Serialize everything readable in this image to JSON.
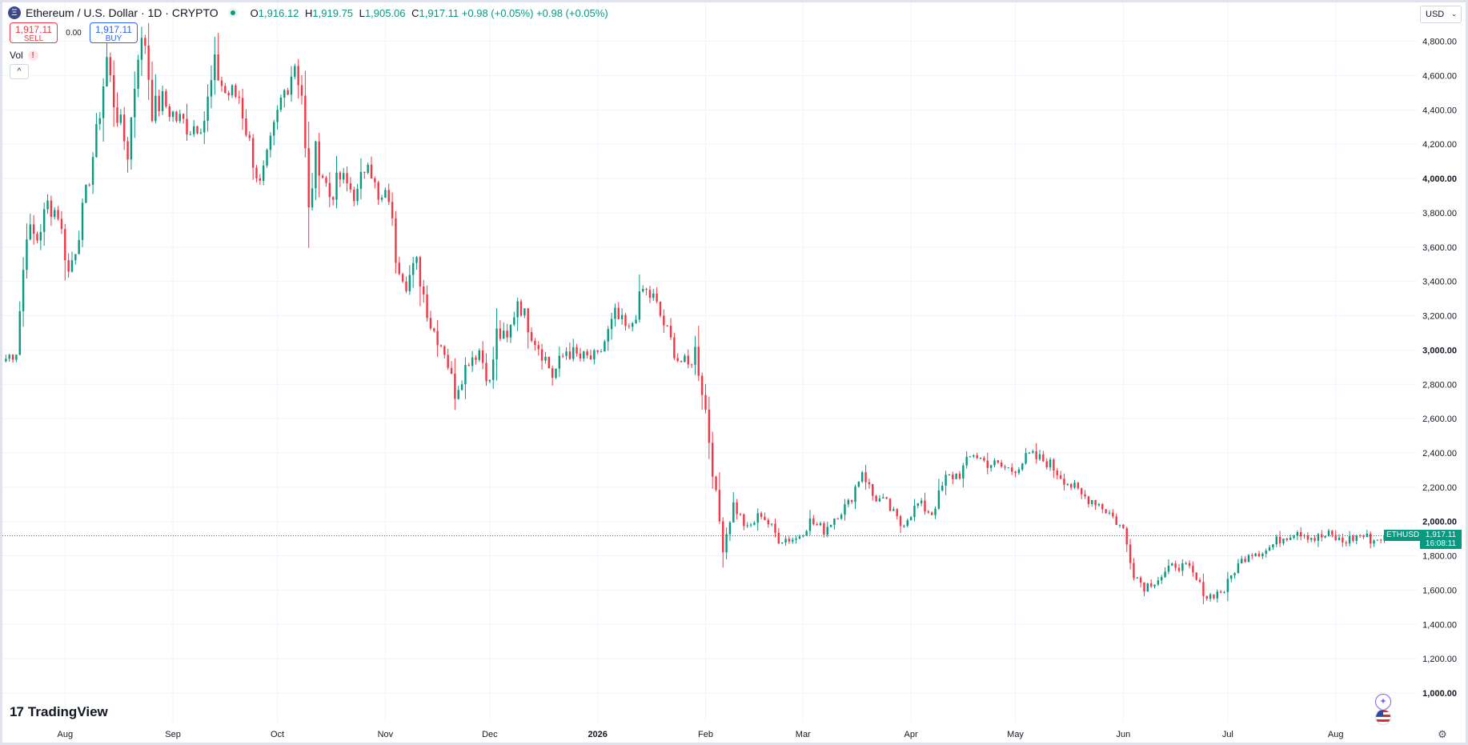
{
  "legend": {
    "symbol": "Ethereum / U.S. Dollar · 1D · CRYPTO",
    "logo_glyph": "Ξ",
    "open_label": "O",
    "open": "1,916.12",
    "high_label": "H",
    "high": "1,919.75",
    "low_label": "L",
    "low": "1,905.06",
    "close_label": "C",
    "close": "1,917.11",
    "change": "+0.98 (+0.05%)",
    "change2": "+0.98 (+0.05%)"
  },
  "trade": {
    "sell_price": "1,917.11",
    "sell_label": "SELL",
    "spread": "0.00",
    "buy_price": "1,917.11",
    "buy_label": "BUY"
  },
  "volume": {
    "label": "Vol",
    "warn_glyph": "!"
  },
  "collapse_glyph": "^",
  "currency": {
    "label": "USD",
    "caret": "⌄"
  },
  "branding": {
    "name": "TradingView",
    "mark": "17"
  },
  "last_price": {
    "symbol_tag": "ETHUSD",
    "price": "1,917.11",
    "countdown": "16:08:11"
  },
  "icons": {
    "ai": "ai-assistant-icon",
    "flag": "us-flag-icon",
    "gear": "gear-icon"
  },
  "colors": {
    "up": "#089981",
    "down": "#f23645",
    "grid": "#f0f3fa",
    "text": "#131722"
  },
  "chart_data": {
    "type": "candlestick",
    "title": "Ethereum / U.S. Dollar · 1D · CRYPTO",
    "y_axis": {
      "ticks": [
        "1,000.00",
        "1,200.00",
        "1,400.00",
        "1,600.00",
        "1,800.00",
        "2,000.00",
        "2,200.00",
        "2,400.00",
        "2,600.00",
        "2,800.00",
        "3,000.00",
        "3,200.00",
        "3,400.00",
        "3,600.00",
        "3,800.00",
        "4,000.00",
        "4,200.00",
        "4,400.00",
        "4,600.00",
        "4,800.00"
      ],
      "tick_values": [
        1000,
        1200,
        1400,
        1600,
        1800,
        2000,
        2200,
        2400,
        2600,
        2800,
        3000,
        3200,
        3400,
        3600,
        3800,
        4000,
        4200,
        4400,
        4600,
        4800
      ],
      "bold_ticks": [
        "1,000.00",
        "2,000.00",
        "3,000.00",
        "4,000.00"
      ],
      "range": [
        985,
        4880
      ],
      "scale": "linear"
    },
    "x_axis": {
      "start_date": "2025-07-14",
      "end_date": "2026-08-22",
      "labels": [
        {
          "text": "Aug",
          "date": "2025-08-01"
        },
        {
          "text": "Sep",
          "date": "2025-09-01"
        },
        {
          "text": "Oct",
          "date": "2025-10-01"
        },
        {
          "text": "Nov",
          "date": "2025-11-01"
        },
        {
          "text": "Dec",
          "date": "2025-12-01"
        },
        {
          "text": "2026",
          "date": "2026-01-01",
          "bold": true
        },
        {
          "text": "Feb",
          "date": "2026-02-01"
        },
        {
          "text": "Mar",
          "date": "2026-03-01"
        },
        {
          "text": "Apr",
          "date": "2026-04-01"
        },
        {
          "text": "May",
          "date": "2026-05-01"
        },
        {
          "text": "Jun",
          "date": "2026-06-01"
        },
        {
          "text": "Jul",
          "date": "2026-07-01"
        },
        {
          "text": "Aug",
          "date": "2026-08-01"
        }
      ]
    },
    "grid": true,
    "last_price_line": 1917.11,
    "anchors": [
      {
        "date": "2025-07-15",
        "close": 2950
      },
      {
        "date": "2025-07-18",
        "close": 3000
      },
      {
        "date": "2025-07-21",
        "close": 3700
      },
      {
        "date": "2025-07-24",
        "close": 3650
      },
      {
        "date": "2025-07-27",
        "close": 3850
      },
      {
        "date": "2025-07-30",
        "close": 3800
      },
      {
        "date": "2025-08-02",
        "close": 3450
      },
      {
        "date": "2025-08-04",
        "close": 3600
      },
      {
        "date": "2025-08-07",
        "close": 3900
      },
      {
        "date": "2025-08-10",
        "close": 4250
      },
      {
        "date": "2025-08-13",
        "close": 4700
      },
      {
        "date": "2025-08-15",
        "close": 4450
      },
      {
        "date": "2025-08-19",
        "close": 4150
      },
      {
        "date": "2025-08-22",
        "close": 4750
      },
      {
        "date": "2025-08-24",
        "close": 4800
      },
      {
        "date": "2025-08-26",
        "close": 4400
      },
      {
        "date": "2025-08-29",
        "close": 4450
      },
      {
        "date": "2025-09-02",
        "close": 4350
      },
      {
        "date": "2025-09-06",
        "close": 4300
      },
      {
        "date": "2025-09-10",
        "close": 4350
      },
      {
        "date": "2025-09-13",
        "close": 4650
      },
      {
        "date": "2025-09-16",
        "close": 4500
      },
      {
        "date": "2025-09-20",
        "close": 4480
      },
      {
        "date": "2025-09-23",
        "close": 4200
      },
      {
        "date": "2025-09-26",
        "close": 3950
      },
      {
        "date": "2025-09-28",
        "close": 4100
      },
      {
        "date": "2025-10-02",
        "close": 4450
      },
      {
        "date": "2025-10-06",
        "close": 4680
      },
      {
        "date": "2025-10-08",
        "close": 4500
      },
      {
        "date": "2025-10-10",
        "close": 3800
      },
      {
        "date": "2025-10-12",
        "close": 4150
      },
      {
        "date": "2025-10-16",
        "close": 3900
      },
      {
        "date": "2025-10-19",
        "close": 4000
      },
      {
        "date": "2025-10-24",
        "close": 3900
      },
      {
        "date": "2025-10-27",
        "close": 4150
      },
      {
        "date": "2025-10-30",
        "close": 3850
      },
      {
        "date": "2025-11-02",
        "close": 3900
      },
      {
        "date": "2025-11-04",
        "close": 3550
      },
      {
        "date": "2025-11-07",
        "close": 3400
      },
      {
        "date": "2025-11-10",
        "close": 3500
      },
      {
        "date": "2025-11-14",
        "close": 3150
      },
      {
        "date": "2025-11-18",
        "close": 3000
      },
      {
        "date": "2025-11-21",
        "close": 2750
      },
      {
        "date": "2025-11-25",
        "close": 2950
      },
      {
        "date": "2025-11-28",
        "close": 3000
      },
      {
        "date": "2025-12-01",
        "close": 2800
      },
      {
        "date": "2025-12-03",
        "close": 3100
      },
      {
        "date": "2025-12-06",
        "close": 3050
      },
      {
        "date": "2025-12-09",
        "close": 3300
      },
      {
        "date": "2025-12-13",
        "close": 3100
      },
      {
        "date": "2025-12-17",
        "close": 2950
      },
      {
        "date": "2025-12-19",
        "close": 2850
      },
      {
        "date": "2025-12-23",
        "close": 3000
      },
      {
        "date": "2025-12-27",
        "close": 2950
      },
      {
        "date": "2026-01-01",
        "close": 2950
      },
      {
        "date": "2026-01-06",
        "close": 3200
      },
      {
        "date": "2026-01-10",
        "close": 3100
      },
      {
        "date": "2026-01-14",
        "close": 3350
      },
      {
        "date": "2026-01-17",
        "close": 3300
      },
      {
        "date": "2026-01-20",
        "close": 3150
      },
      {
        "date": "2026-01-24",
        "close": 2950
      },
      {
        "date": "2026-01-27",
        "close": 2900
      },
      {
        "date": "2026-01-29",
        "close": 3000
      },
      {
        "date": "2026-02-01",
        "close": 2650
      },
      {
        "date": "2026-02-03",
        "close": 2300
      },
      {
        "date": "2026-02-06",
        "close": 1850
      },
      {
        "date": "2026-02-09",
        "close": 2100
      },
      {
        "date": "2026-02-13",
        "close": 1950
      },
      {
        "date": "2026-02-17",
        "close": 2050
      },
      {
        "date": "2026-02-22",
        "close": 1900
      },
      {
        "date": "2026-02-27",
        "close": 1900
      },
      {
        "date": "2026-03-03",
        "close": 2000
      },
      {
        "date": "2026-03-07",
        "close": 1950
      },
      {
        "date": "2026-03-11",
        "close": 2050
      },
      {
        "date": "2026-03-14",
        "close": 2100
      },
      {
        "date": "2026-03-18",
        "close": 2300
      },
      {
        "date": "2026-03-21",
        "close": 2150
      },
      {
        "date": "2026-03-25",
        "close": 2100
      },
      {
        "date": "2026-03-29",
        "close": 1980
      },
      {
        "date": "2026-04-03",
        "close": 2100
      },
      {
        "date": "2026-04-07",
        "close": 2050
      },
      {
        "date": "2026-04-11",
        "close": 2250
      },
      {
        "date": "2026-04-15",
        "close": 2280
      },
      {
        "date": "2026-04-19",
        "close": 2400
      },
      {
        "date": "2026-04-22",
        "close": 2350
      },
      {
        "date": "2026-04-25",
        "close": 2330
      },
      {
        "date": "2026-04-30",
        "close": 2300
      },
      {
        "date": "2026-05-05",
        "close": 2380
      },
      {
        "date": "2026-05-10",
        "close": 2350
      },
      {
        "date": "2026-05-15",
        "close": 2250
      },
      {
        "date": "2026-05-20",
        "close": 2150
      },
      {
        "date": "2026-05-24",
        "close": 2120
      },
      {
        "date": "2026-05-28",
        "close": 2050
      },
      {
        "date": "2026-06-01",
        "close": 1950
      },
      {
        "date": "2026-06-04",
        "close": 1700
      },
      {
        "date": "2026-06-07",
        "close": 1620
      },
      {
        "date": "2026-06-12",
        "close": 1680
      },
      {
        "date": "2026-06-16",
        "close": 1750
      },
      {
        "date": "2026-06-20",
        "close": 1720
      },
      {
        "date": "2026-06-25",
        "close": 1560
      },
      {
        "date": "2026-06-30",
        "close": 1600
      },
      {
        "date": "2026-07-03",
        "close": 1720
      },
      {
        "date": "2026-07-07",
        "close": 1820
      },
      {
        "date": "2026-07-12",
        "close": 1830
      },
      {
        "date": "2026-07-16",
        "close": 1900
      },
      {
        "date": "2026-07-21",
        "close": 1950
      },
      {
        "date": "2026-07-26",
        "close": 1900
      },
      {
        "date": "2026-07-30",
        "close": 1920
      },
      {
        "date": "2026-08-03",
        "close": 1880
      },
      {
        "date": "2026-08-08",
        "close": 1920
      },
      {
        "date": "2026-08-12",
        "close": 1890
      },
      {
        "date": "2026-08-15",
        "close": 1917.11
      }
    ]
  }
}
